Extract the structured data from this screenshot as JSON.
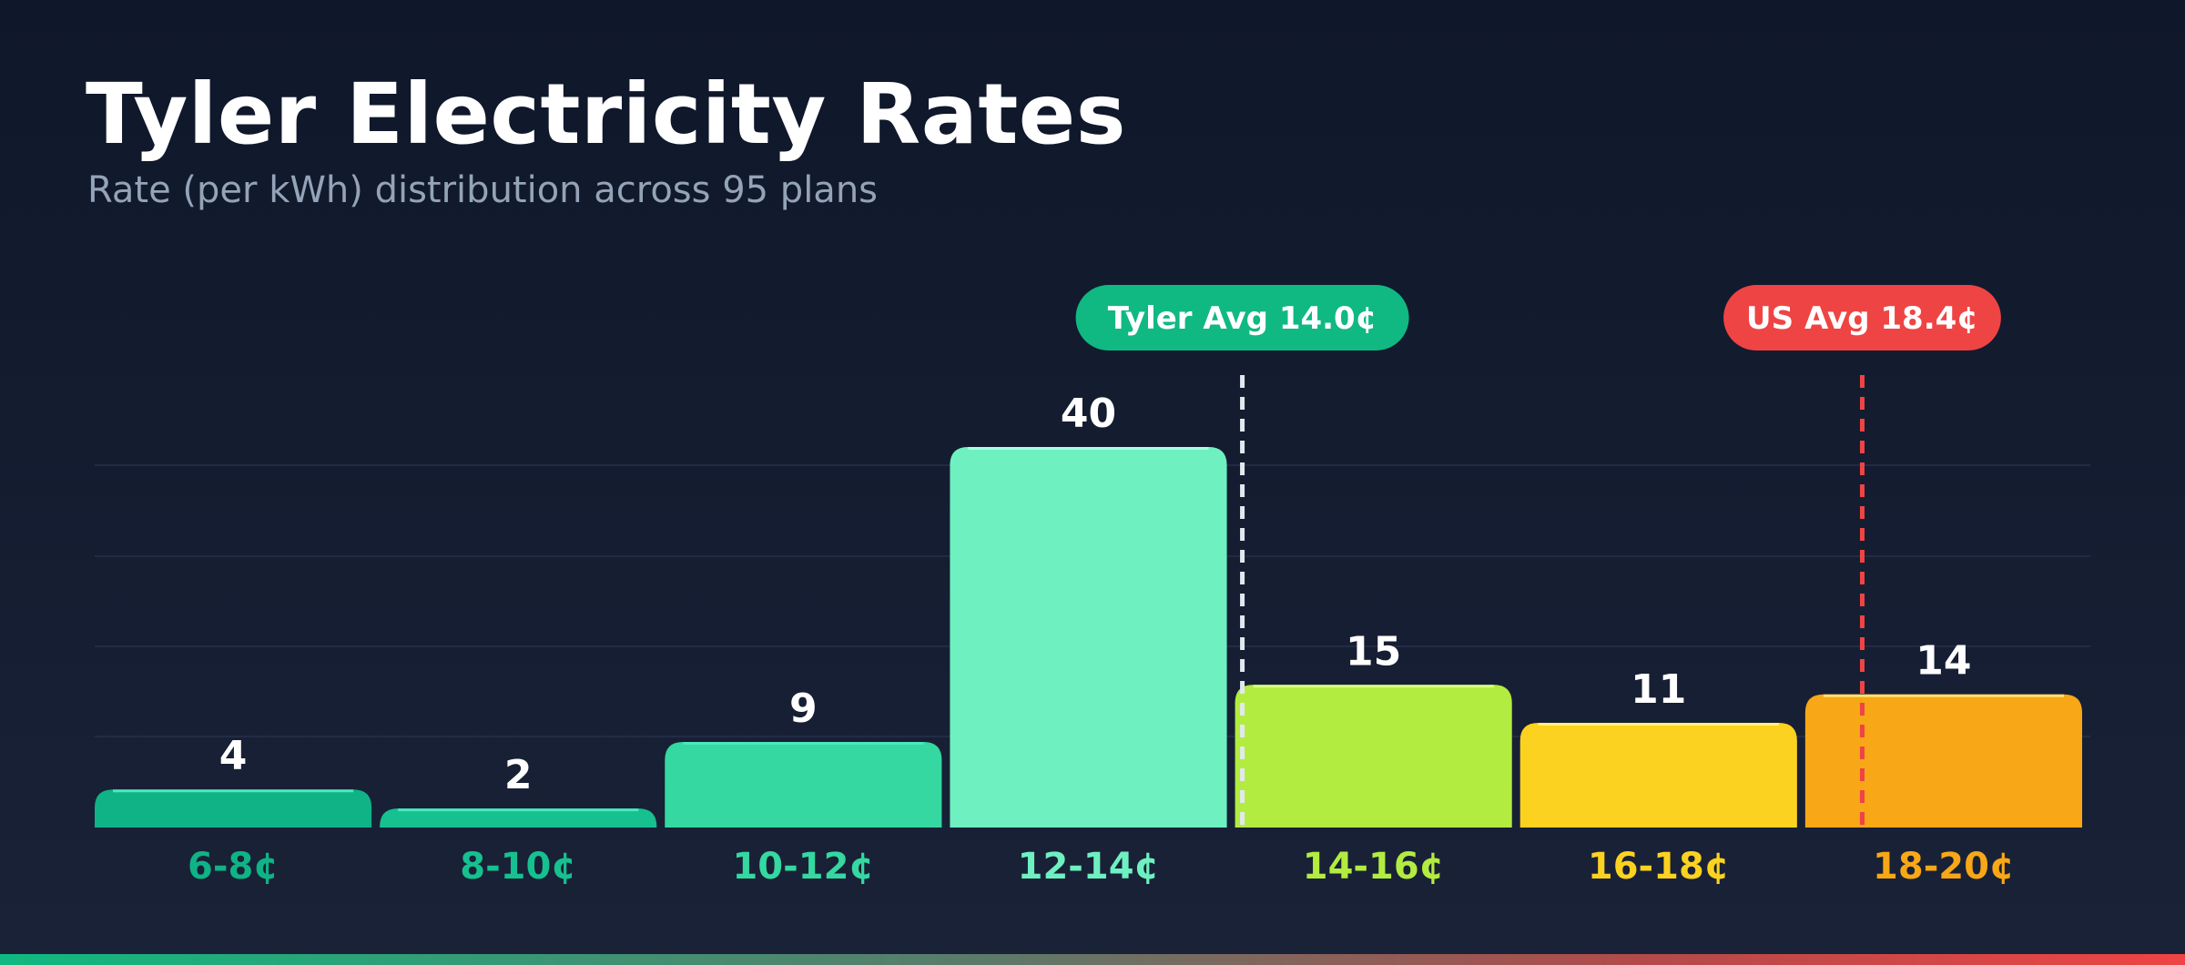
{
  "header": {
    "title": "Tyler Electricity Rates",
    "subtitle": "Rate (per kWh) distribution across 95 plans"
  },
  "chart_data": {
    "type": "bar",
    "title": "Tyler Electricity Rates",
    "subtitle": "Rate (per kWh) distribution across 95 plans",
    "xlabel": "",
    "ylabel": "",
    "categories": [
      "6-8¢",
      "8-10¢",
      "10-12¢",
      "12-14¢",
      "14-16¢",
      "16-18¢",
      "18-20¢"
    ],
    "values": [
      4,
      2,
      9,
      40,
      15,
      11,
      14
    ],
    "ylim": [
      0,
      40
    ],
    "grid": true,
    "colors": [
      "#0fb385",
      "#16c08f",
      "#34d8a0",
      "#6ef0c0",
      "#b3ec40",
      "#fcd220",
      "#f8a716"
    ],
    "highlight_colors": [
      "#4be8c0",
      "#4be8c0",
      "#4be8c0",
      "#a6ffe4",
      "#d6ff80",
      "#fff080",
      "#ffe070"
    ],
    "reference_lines": [
      {
        "label": "Tyler Avg 14.0¢",
        "value": 14.0,
        "color": "#e2e8f0",
        "badge_color": "#10b981"
      },
      {
        "label": "US Avg 18.4¢",
        "value": 18.4,
        "color": "#ef4444",
        "badge_color": "#ef4444"
      }
    ],
    "x_range": [
      6,
      20
    ]
  }
}
